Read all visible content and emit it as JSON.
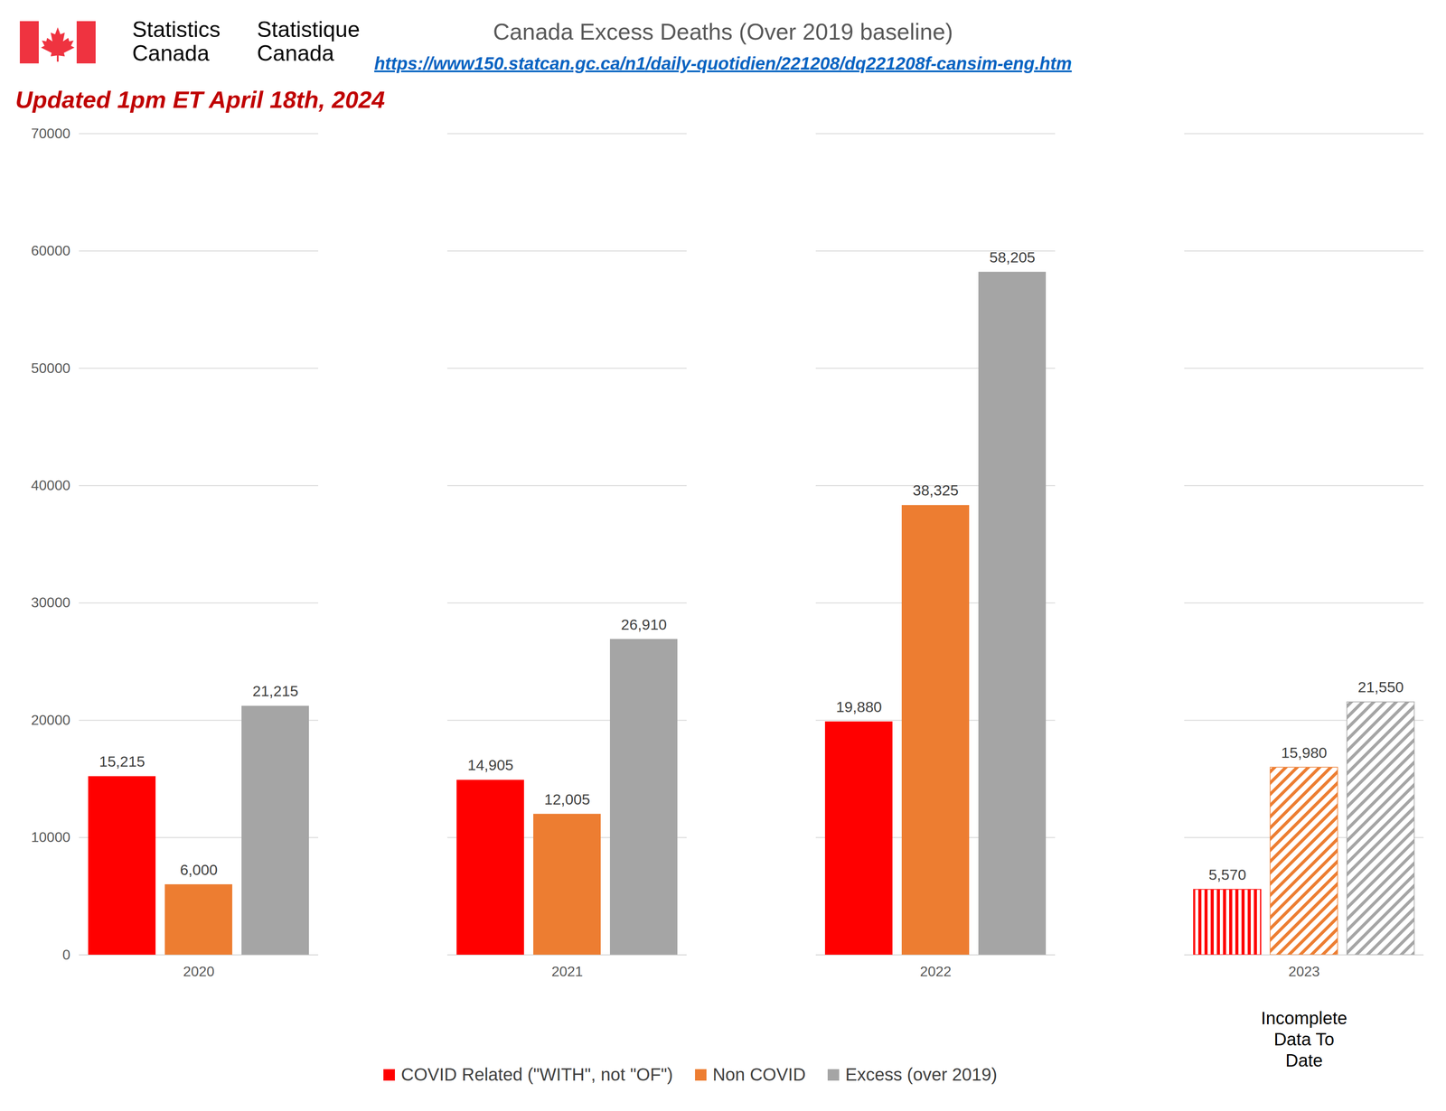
{
  "chart_data": {
    "type": "bar",
    "title": "Canada Excess Deaths (Over 2019 baseline)",
    "subtitle": "https://www150.statcan.gc.ca/n1/daily-quotidien/221208/dq221208f-cansim-eng.htm",
    "logo": [
      "Statistics\nCanada",
      "Statistique\nCanada"
    ],
    "annotations": [
      {
        "text": "Updated 1pm ET April 18th, 2024"
      },
      {
        "text": "Incomplete\nData To\nDate",
        "category": "2023"
      }
    ],
    "categories": [
      "2020",
      "2021",
      "2022",
      "2023"
    ],
    "series": [
      {
        "name": "COVID Related (\"WITH\", not \"OF\")",
        "color": "#ff0000",
        "values": [
          15215,
          14905,
          19880,
          5570
        ],
        "value_labels": [
          "15,215",
          "14,905",
          "19,880",
          "5,570"
        ]
      },
      {
        "name": "Non COVID",
        "color": "#ed7d31",
        "values": [
          6000,
          12005,
          38325,
          15980
        ],
        "value_labels": [
          "6,000",
          "12,005",
          "38,325",
          "15,980"
        ]
      },
      {
        "name": "Excess (over 2019)",
        "color": "#a5a5a5",
        "values": [
          21215,
          26910,
          58205,
          21550
        ],
        "value_labels": [
          "21,215",
          "26,910",
          "58,205",
          "21,550"
        ]
      }
    ],
    "ylim": [
      0,
      70000
    ],
    "yticks": [
      0,
      10000,
      20000,
      30000,
      40000,
      50000,
      60000,
      70000
    ],
    "grid": true,
    "legend": "bottom",
    "data_labels": true
  }
}
